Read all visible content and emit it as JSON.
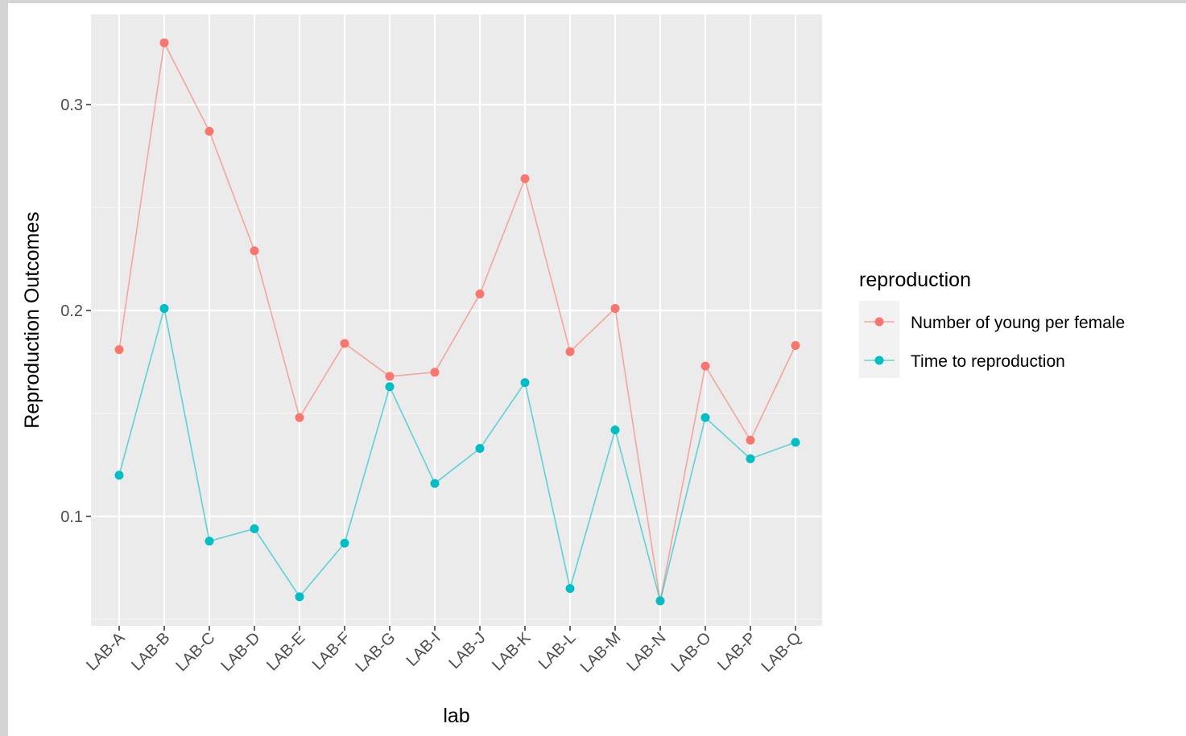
{
  "chart_data": {
    "type": "line",
    "xlabel": "lab",
    "ylabel": "Reproduction Outcomes",
    "categories": [
      "LAB-A",
      "LAB-B",
      "LAB-C",
      "LAB-D",
      "LAB-E",
      "LAB-F",
      "LAB-G",
      "LAB-I",
      "LAB-J",
      "LAB-K",
      "LAB-L",
      "LAB-M",
      "LAB-N",
      "LAB-O",
      "LAB-P",
      "LAB-Q"
    ],
    "ylim": [
      0.05,
      0.335
    ],
    "yticks": [
      0.1,
      0.2,
      0.3
    ],
    "ytick_labels": [
      "0.1",
      "0.2",
      "0.3"
    ],
    "grid": true,
    "legend": {
      "title": "reproduction",
      "placement": "right"
    },
    "series": [
      {
        "name": "Number of young per female",
        "color": "#F8766D",
        "values": [
          0.181,
          0.33,
          0.287,
          0.229,
          0.148,
          0.184,
          0.168,
          0.17,
          0.208,
          0.264,
          0.18,
          0.201,
          0.059,
          0.173,
          0.137,
          0.183
        ]
      },
      {
        "name": "Time to reproduction",
        "color": "#00BFC4",
        "values": [
          0.12,
          0.201,
          0.088,
          0.094,
          0.061,
          0.087,
          0.163,
          0.116,
          0.133,
          0.165,
          0.065,
          0.142,
          0.059,
          0.148,
          0.128,
          0.136
        ]
      }
    ]
  }
}
